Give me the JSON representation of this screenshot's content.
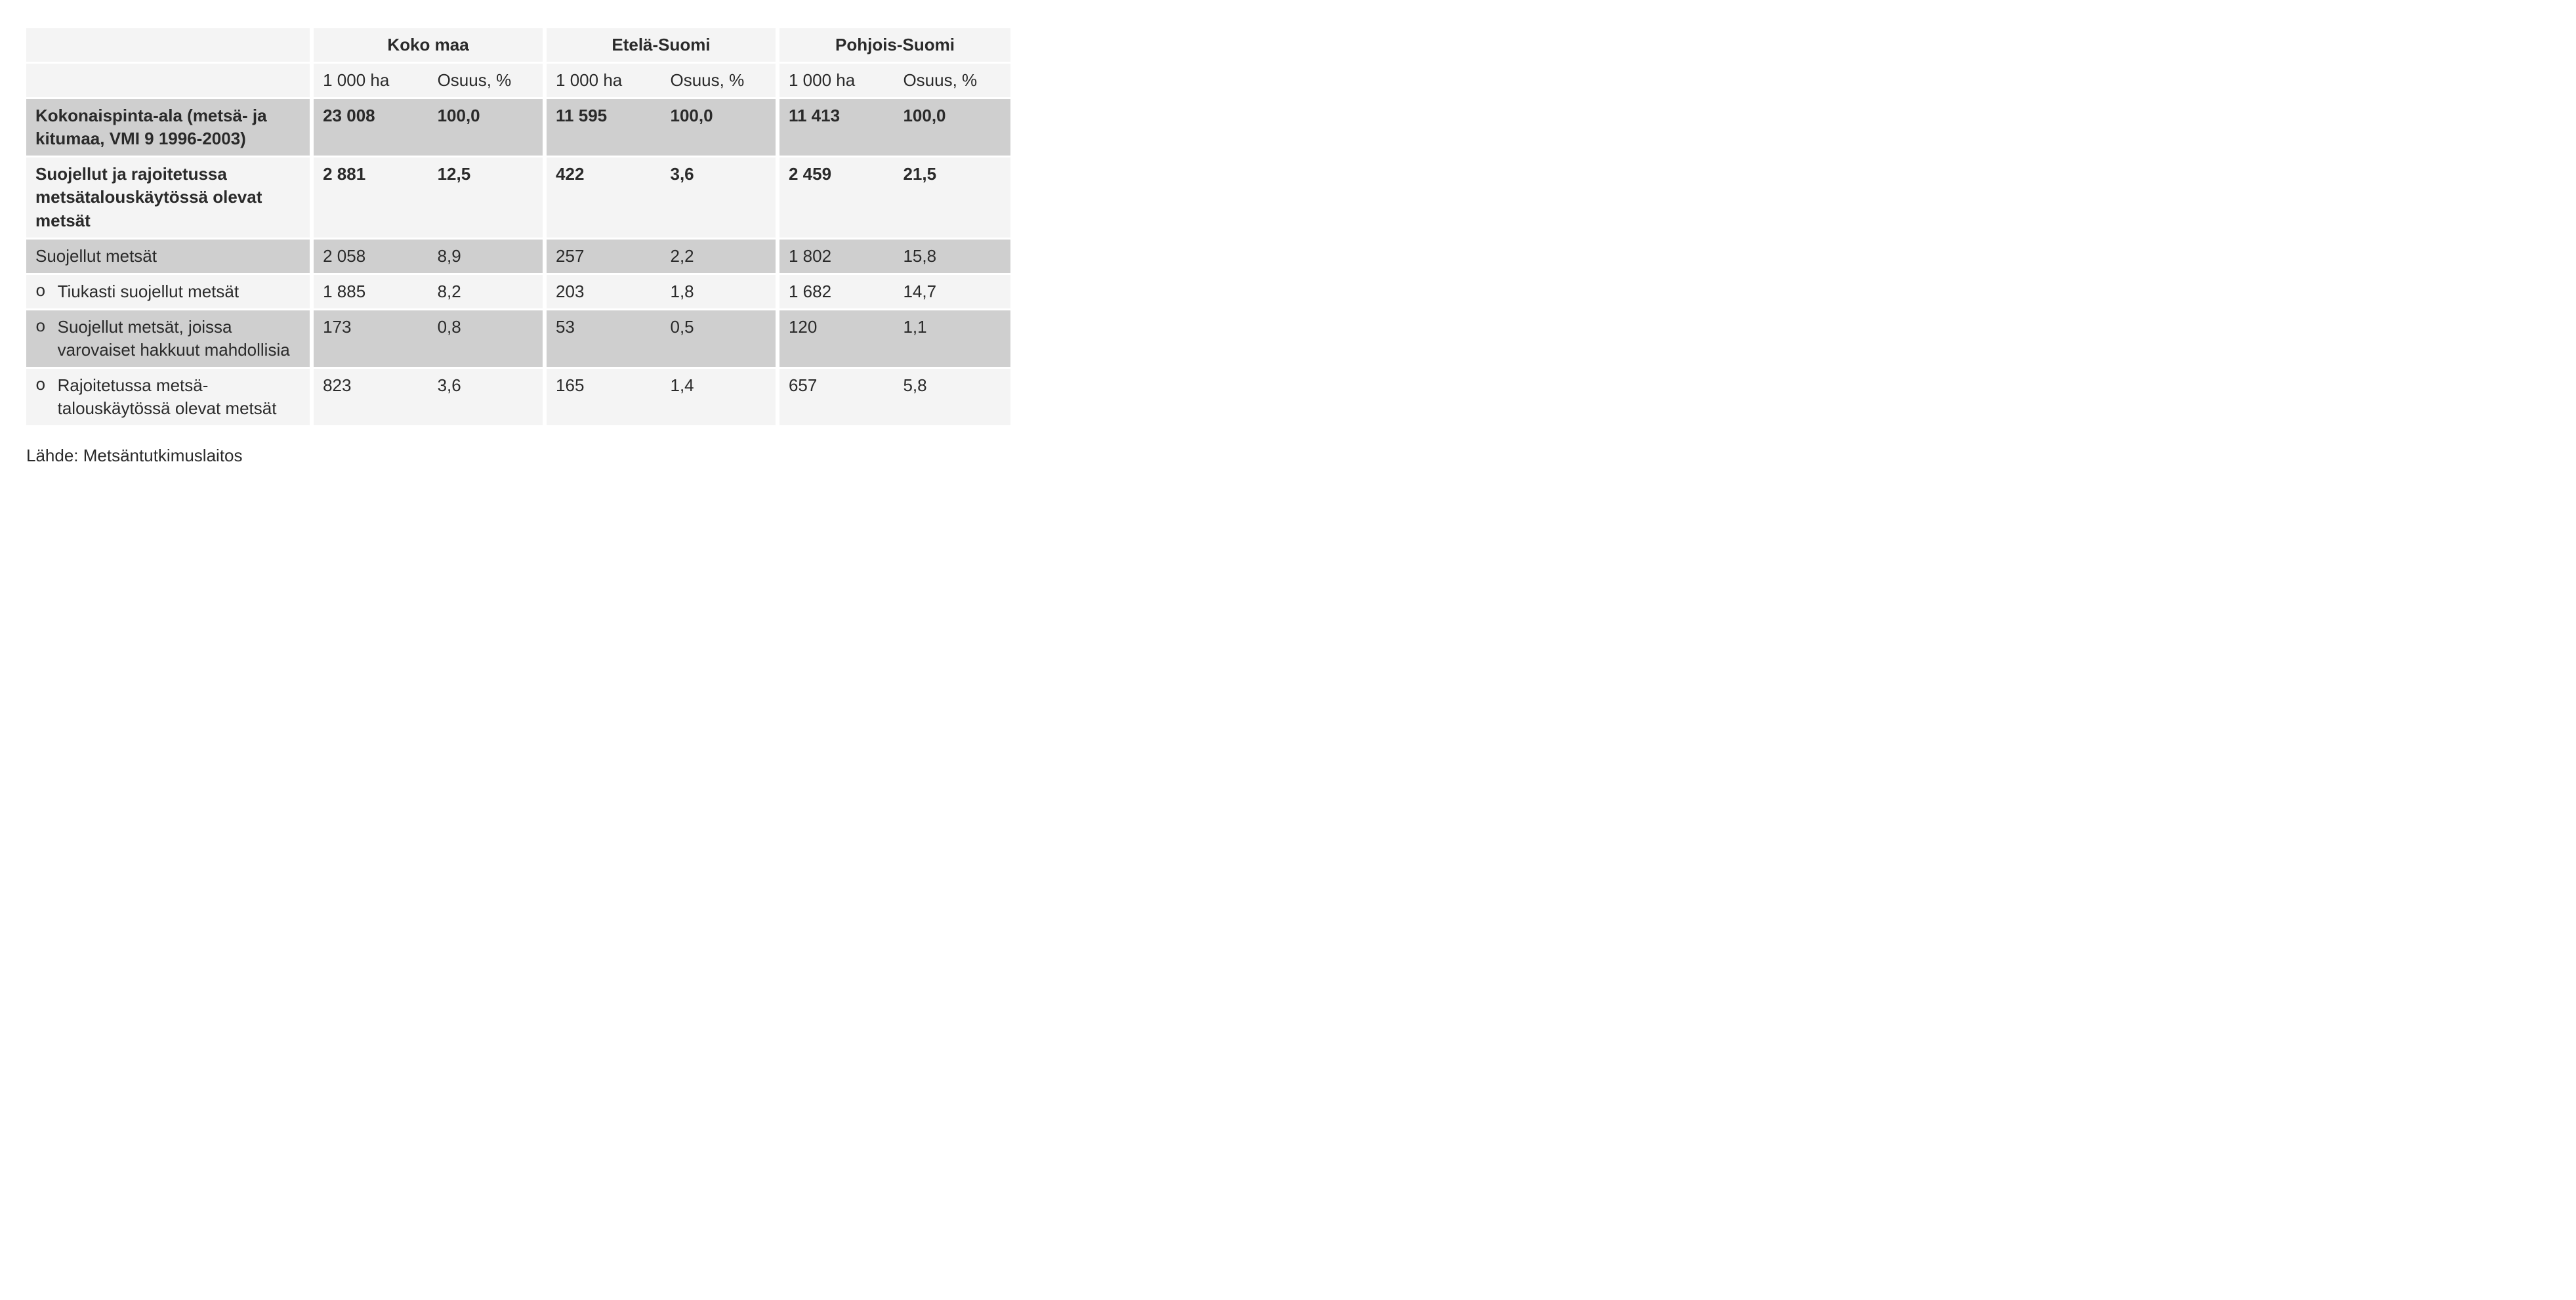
{
  "colors": {
    "light_band": "#f4f4f4",
    "dark_band": "#cfcfcf",
    "separator": "#ffffff",
    "text": "#2a2a2a",
    "background": "#ffffff"
  },
  "typography": {
    "font_family": "Arial",
    "base_fontsize_pt": 20,
    "bold_weight": 700
  },
  "table": {
    "type": "table",
    "column_groups": [
      {
        "label": "",
        "subcols": [
          ""
        ]
      },
      {
        "label": "Koko maa",
        "subcols": [
          "1 000 ha",
          "Osuus, %"
        ]
      },
      {
        "label": "Etelä-Suomi",
        "subcols": [
          "1 000 ha",
          "Osuus, %"
        ]
      },
      {
        "label": "Pohjois-Suomi",
        "subcols": [
          "1 000 ha",
          "Osuus, %"
        ]
      }
    ],
    "rows": [
      {
        "label": "Kokonaispinta-ala (metsä- ja kitumaa, VMI 9 1996-2003)",
        "bold": true,
        "band": "dark",
        "indent": 0,
        "cells": [
          "23 008",
          "100,0",
          "11 595",
          "100,0",
          "11 413",
          "100,0"
        ]
      },
      {
        "label": "Suojellut ja rajoitetussa metsätalouskäytössä olevat metsät",
        "bold": true,
        "band": "light",
        "indent": 0,
        "cells": [
          "2 881",
          "12,5",
          "422",
          "3,6",
          "2 459",
          "21,5"
        ]
      },
      {
        "label": "Suojellut metsät",
        "bold": false,
        "band": "dark",
        "indent": 0,
        "cells": [
          "2 058",
          "8,9",
          "257",
          "2,2",
          "1 802",
          "15,8"
        ]
      },
      {
        "label": "Tiukasti suojellut metsät",
        "bold": false,
        "band": "light",
        "indent": 1,
        "bullet": "o",
        "cells": [
          "1 885",
          "8,2",
          "203",
          "1,8",
          "1 682",
          "14,7"
        ]
      },
      {
        "label": "Suojellut metsät, joissa varovaiset hakkuut mahdollisia",
        "bold": false,
        "band": "dark",
        "indent": 1,
        "bullet": "o",
        "cells": [
          "173",
          "0,8",
          "53",
          "0,5",
          "120",
          "1,1"
        ]
      },
      {
        "label": "Rajoitetussa metsä­talouskäytössä olevat metsät",
        "bold": false,
        "band": "light",
        "indent": 1,
        "bullet": "o",
        "cells": [
          "823",
          "3,6",
          "165",
          "1,4",
          "657",
          "5,8"
        ]
      }
    ]
  },
  "source_label": "Lähde: Metsäntutkimuslaitos"
}
